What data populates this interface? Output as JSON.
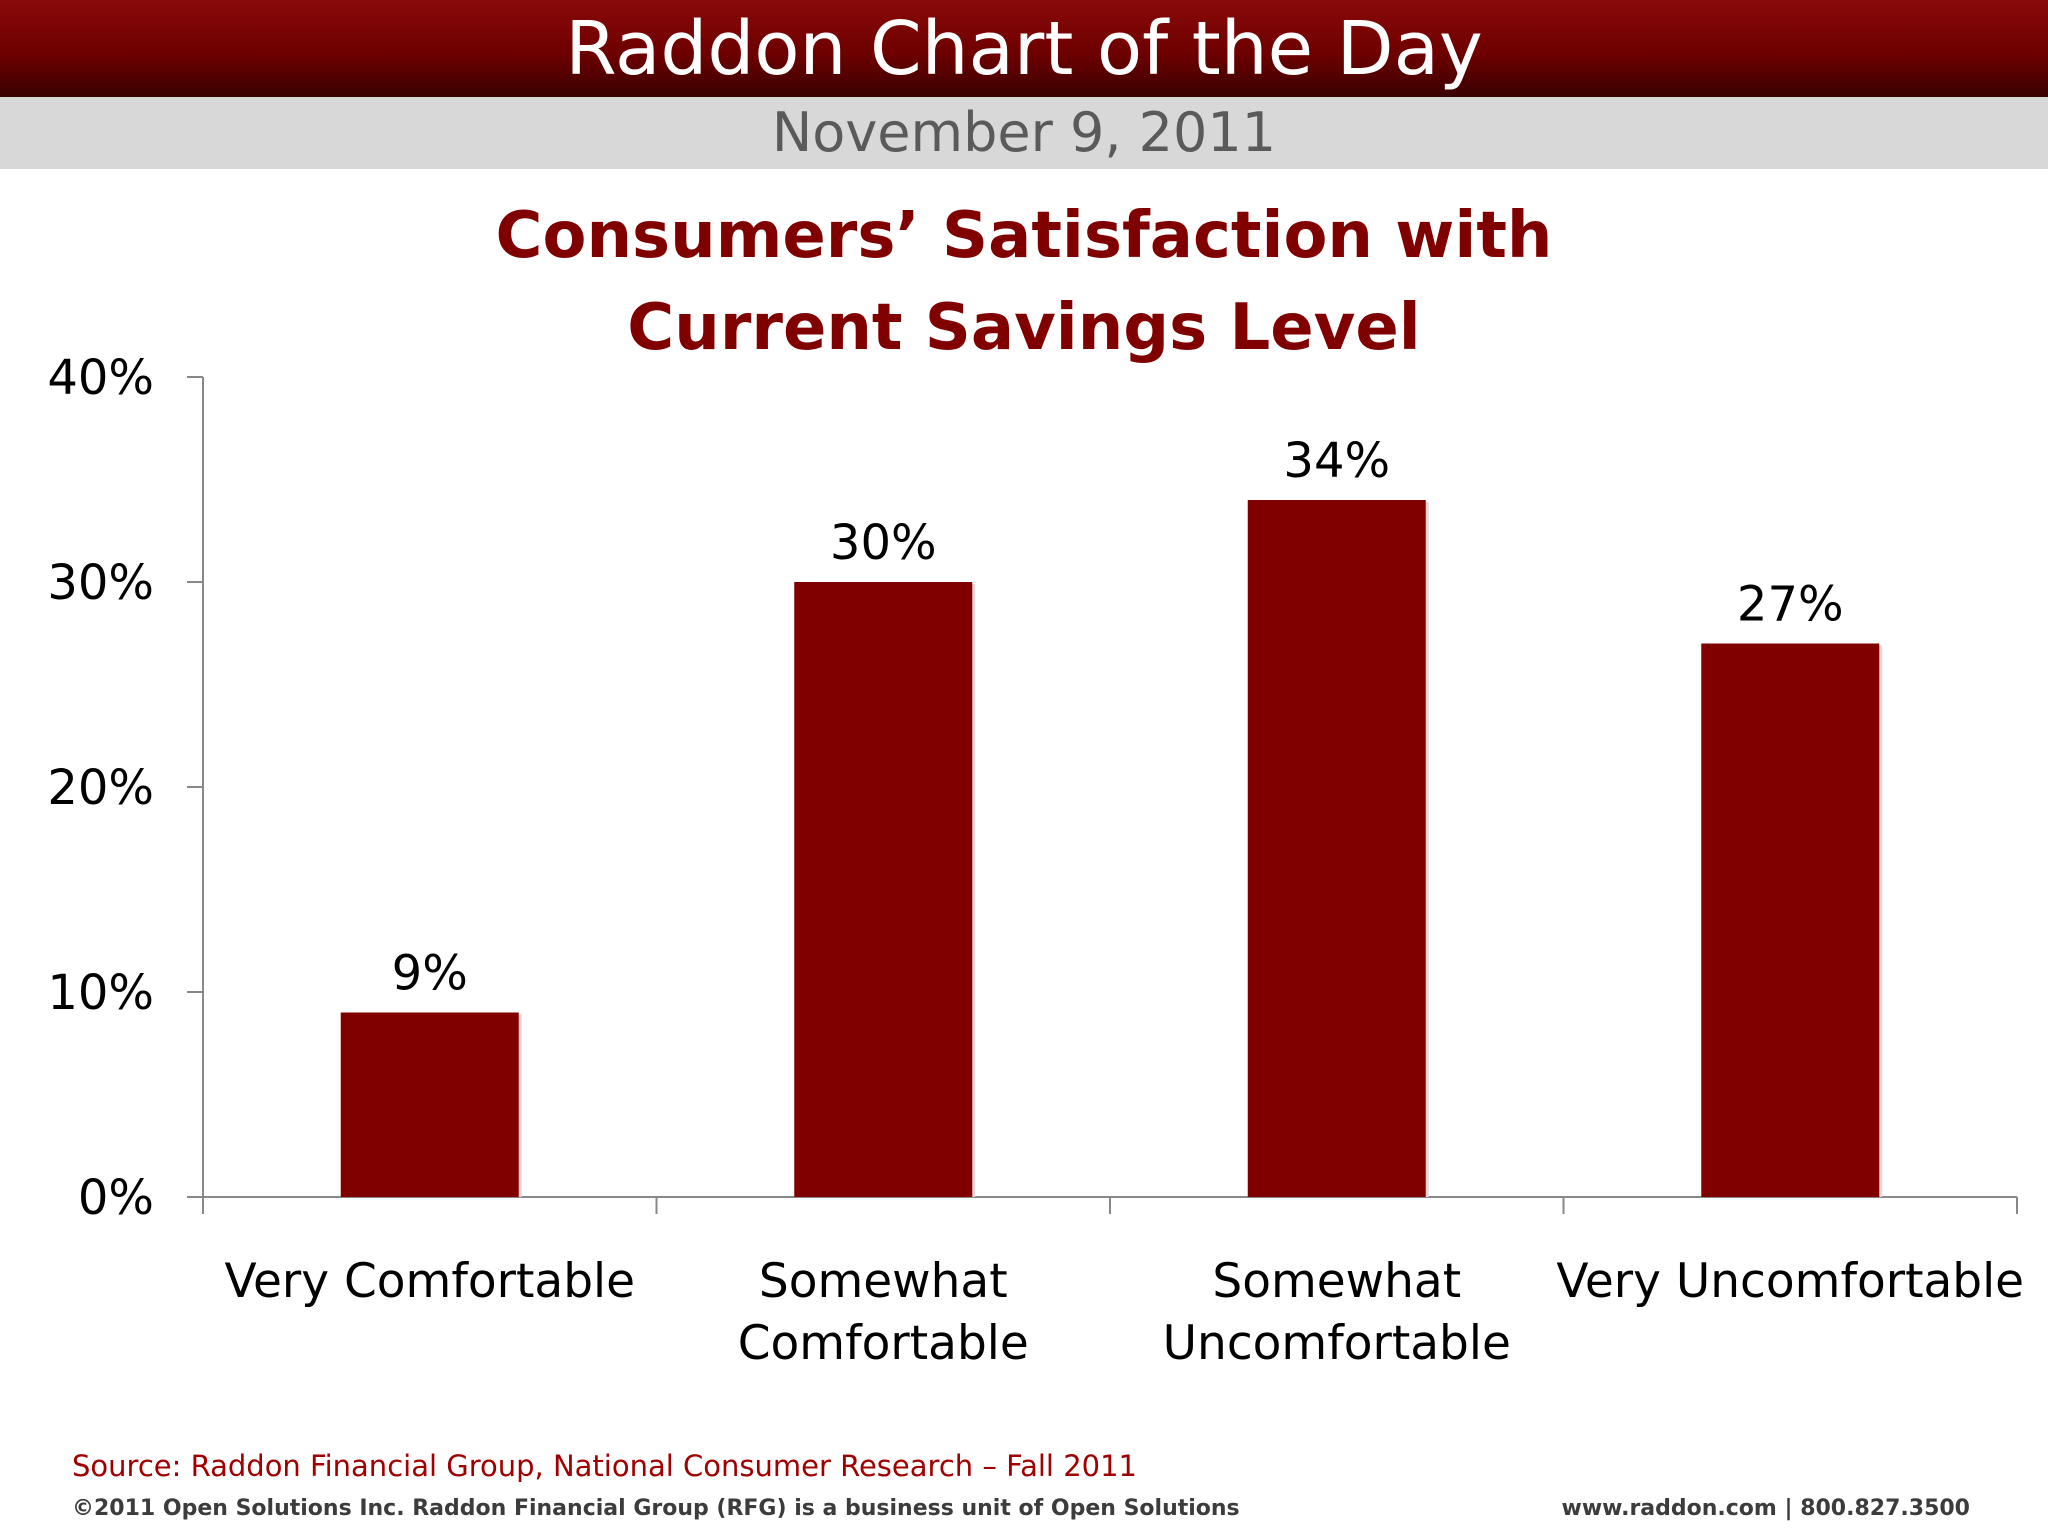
{
  "header": {
    "title": "Raddon Chart of the Day",
    "date": "November 9, 2011"
  },
  "colors": {
    "bar": "#800000",
    "title": "#800000",
    "axis": "#888888"
  },
  "chart_data": {
    "type": "bar",
    "title_lines": [
      "Consumers’ Satisfaction with",
      "Current Savings Level"
    ],
    "categories": [
      [
        "Very Comfortable"
      ],
      [
        "Somewhat",
        "Comfortable"
      ],
      [
        "Somewhat",
        "Uncomfortable"
      ],
      [
        "Very Uncomfortable"
      ]
    ],
    "values": [
      9,
      30,
      34,
      27
    ],
    "value_labels": [
      "9%",
      "30%",
      "34%",
      "27%"
    ],
    "y_ticks": [
      0,
      10,
      20,
      30,
      40
    ],
    "y_tick_labels": [
      "0%",
      "10%",
      "20%",
      "30%",
      "40%"
    ],
    "ylim": [
      0,
      40
    ],
    "xlabel": "",
    "ylabel": "",
    "grid": false,
    "legend": "none"
  },
  "footer": {
    "source": "Source: Raddon Financial Group, National Consumer Research – Fall 2011",
    "copyright": "©2011 Open Solutions Inc.  Raddon Financial Group (RFG) is a business unit of Open Solutions",
    "contact": "www.raddon.com  |  800.827.3500"
  }
}
